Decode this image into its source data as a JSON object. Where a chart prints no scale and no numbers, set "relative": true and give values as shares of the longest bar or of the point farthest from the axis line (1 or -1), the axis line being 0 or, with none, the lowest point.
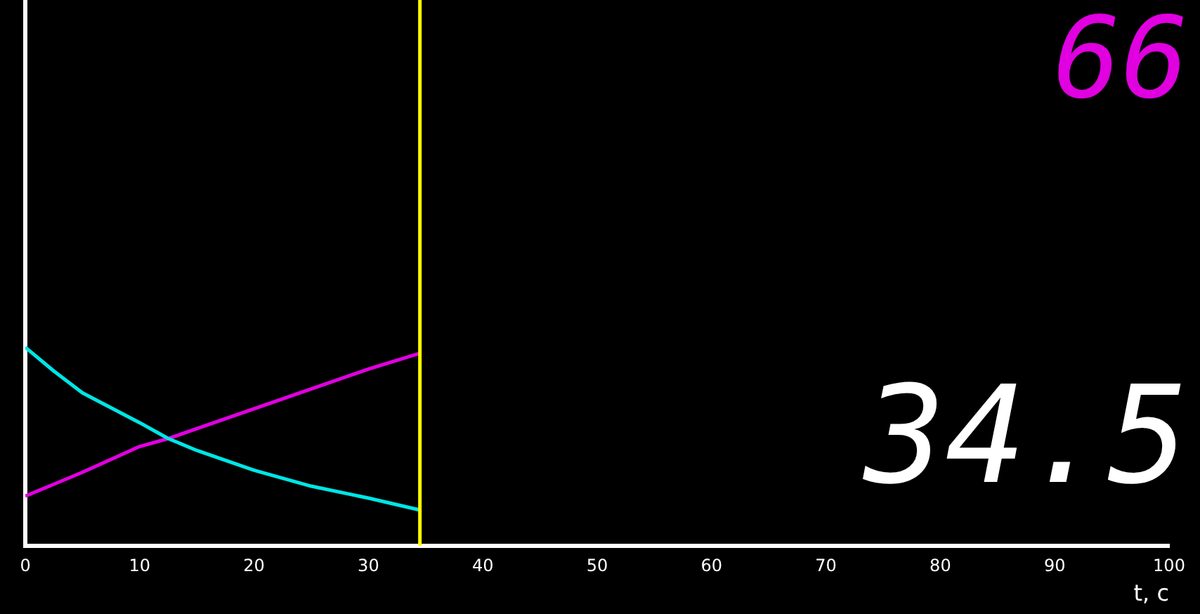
{
  "chart_data": {
    "type": "line",
    "relative": true,
    "xlabel": "t, c",
    "x": [
      0,
      2.5,
      5,
      10,
      12.5,
      15,
      20,
      25,
      30,
      34.5
    ],
    "xlim": [
      0,
      100
    ],
    "xticks": [
      0,
      10,
      20,
      30,
      40,
      50,
      60,
      70,
      80,
      90,
      100
    ],
    "series": [
      {
        "color": "#00e5e5",
        "values": [
          1,
          0.88,
          0.77,
          0.62,
          0.54,
          0.48,
          0.38,
          0.3,
          0.24,
          0.18
        ]
      },
      {
        "color": "#e000e0",
        "values": [
          0.25,
          0.31,
          0.37,
          0.5,
          0.54,
          0.59,
          0.69,
          0.79,
          0.89,
          0.97
        ]
      }
    ],
    "ref_lines": [
      {
        "axis": "x",
        "value": 34.5,
        "color": "#ffff00"
      }
    ],
    "annotations": [
      "66",
      "34.5"
    ],
    "grid": false,
    "legend": false,
    "marker": "none",
    "line_style": "solid"
  }
}
